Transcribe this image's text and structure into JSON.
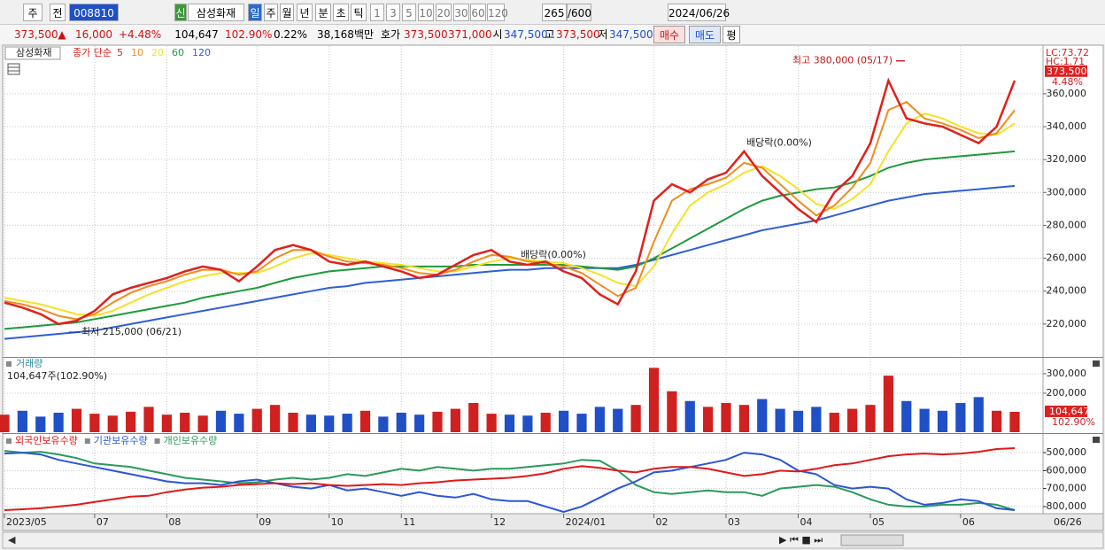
{
  "toolbar": {
    "row1": [
      "주",
      "전",
      "008810",
      "신",
      "삼성화재",
      "일",
      "주",
      "월",
      "년",
      "분",
      "초",
      "틱",
      "1",
      "3",
      "5",
      "10",
      "20",
      "30",
      "60",
      "120",
      "265",
      "/600",
      "2024/06/26"
    ],
    "row2": [
      "373,500",
      "▲",
      "16,000",
      "+4.48%",
      "104,647",
      "102.90%",
      "0.22%",
      "38,168백만",
      "호가",
      "373,500",
      "371,000",
      "시",
      "347,500",
      "고",
      "373,500",
      "저",
      "347,500",
      "매수",
      "매도",
      "평"
    ]
  },
  "chart_data": [
    {
      "type": "line",
      "stock_label": "삼성화재",
      "legend_prefix": "종가 단순",
      "ylim": [
        200000,
        389000
      ],
      "yticks": [
        {
          "value": 220000,
          "label": "220,000"
        },
        {
          "value": 240000,
          "label": "240,000"
        },
        {
          "value": 260000,
          "label": "260,000"
        },
        {
          "value": 280000,
          "label": "280,000"
        },
        {
          "value": 300000,
          "label": "300,000"
        },
        {
          "value": 320000,
          "label": "320,000"
        },
        {
          "value": 340000,
          "label": "340,000"
        },
        {
          "value": 360000,
          "label": "360,000"
        }
      ],
      "grid": true,
      "side_labels": [
        "LC:73.72",
        "HC:1.71"
      ],
      "last_price": {
        "value": 373500,
        "label": "373,500"
      },
      "last_change": "4.48%",
      "annotations": [
        {
          "text": "최고 380,000 (05/17)",
          "value": 380000
        },
        {
          "text": "최저 215,000 (06/21)",
          "value": 215000
        },
        {
          "text": "배당락(0.00%)",
          "value": 262000
        },
        {
          "text": "배당락(0.00%)",
          "value": 330000
        }
      ],
      "series": [
        {
          "name": "5",
          "color": "#e0201b",
          "values": [
            233000,
            230000,
            226000,
            220000,
            222000,
            228000,
            238000,
            242000,
            245000,
            248000,
            252000,
            255000,
            253000,
            246000,
            255000,
            265000,
            268000,
            265000,
            258000,
            256000,
            258000,
            255000,
            252000,
            248000,
            250000,
            256000,
            262000,
            265000,
            258000,
            256000,
            258000,
            252000,
            248000,
            238000,
            232000,
            252000,
            295000,
            305000,
            300000,
            308000,
            312000,
            325000,
            310000,
            300000,
            290000,
            282000,
            300000,
            310000,
            330000,
            368000,
            345000,
            342000,
            340000,
            335000,
            330000,
            340000,
            368000
          ]
        },
        {
          "name": "10",
          "color": "#f08c1e",
          "values": [
            234000,
            232000,
            229000,
            225000,
            223000,
            226000,
            233000,
            239000,
            243000,
            246000,
            250000,
            253000,
            253000,
            250000,
            252000,
            260000,
            265000,
            265000,
            261000,
            258000,
            257000,
            256000,
            254000,
            251000,
            250000,
            253000,
            258000,
            262000,
            261000,
            258000,
            257000,
            255000,
            251000,
            244000,
            237000,
            242000,
            270000,
            295000,
            302000,
            305000,
            309000,
            318000,
            315000,
            305000,
            295000,
            286000,
            292000,
            303000,
            318000,
            350000,
            355000,
            345000,
            342000,
            338000,
            333000,
            336000,
            350000
          ]
        },
        {
          "name": "20",
          "color": "#f2e22a",
          "values": [
            236000,
            234000,
            232000,
            229000,
            226000,
            225000,
            228000,
            233000,
            238000,
            242000,
            246000,
            249000,
            251000,
            251000,
            251000,
            255000,
            260000,
            263000,
            262000,
            260000,
            258000,
            257000,
            256000,
            254000,
            252000,
            252000,
            255000,
            258000,
            260000,
            259000,
            258000,
            257000,
            254000,
            250000,
            245000,
            243000,
            255000,
            275000,
            292000,
            300000,
            305000,
            312000,
            316000,
            310000,
            302000,
            293000,
            290000,
            296000,
            305000,
            325000,
            342000,
            348000,
            345000,
            340000,
            336000,
            335000,
            342000
          ]
        },
        {
          "name": "60",
          "color": "#1e9a3c",
          "values": [
            217000,
            218000,
            219000,
            220000,
            221000,
            223000,
            225000,
            227000,
            229000,
            231000,
            233000,
            236000,
            238000,
            240000,
            242000,
            245000,
            248000,
            250000,
            252000,
            253000,
            254000,
            255000,
            255000,
            255000,
            255000,
            255000,
            256000,
            256000,
            256000,
            256000,
            256000,
            256000,
            255000,
            254000,
            253000,
            255000,
            260000,
            266000,
            272000,
            278000,
            284000,
            290000,
            295000,
            298000,
            300000,
            302000,
            303000,
            306000,
            310000,
            315000,
            318000,
            320000,
            321000,
            322000,
            323000,
            324000,
            325000
          ]
        },
        {
          "name": "120",
          "color": "#2e5ed8",
          "values": [
            211000,
            212000,
            213000,
            214000,
            215000,
            216000,
            218000,
            220000,
            222000,
            224000,
            226000,
            228000,
            230000,
            232000,
            234000,
            236000,
            238000,
            240000,
            242000,
            243000,
            245000,
            246000,
            247000,
            248000,
            249000,
            250000,
            251000,
            252000,
            253000,
            253000,
            254000,
            254000,
            254000,
            254000,
            254000,
            256000,
            259000,
            262000,
            265000,
            268000,
            271000,
            274000,
            277000,
            279000,
            281000,
            283000,
            286000,
            289000,
            292000,
            295000,
            297000,
            299000,
            300000,
            301000,
            302000,
            303000,
            304000
          ]
        }
      ]
    },
    {
      "type": "bar",
      "title": "거래량",
      "subtitle": "104,647주(102.90%)",
      "ylim": [
        0,
        377000
      ],
      "yticks": [
        {
          "value": 200000,
          "label": "200,000"
        },
        {
          "value": 300000,
          "label": "300,000"
        }
      ],
      "color": "#d02020",
      "color_down": "#2050c8",
      "values": [
        90000,
        110000,
        80000,
        100000,
        120000,
        95000,
        85000,
        105000,
        130000,
        90000,
        100000,
        85000,
        110000,
        95000,
        120000,
        140000,
        100000,
        90000,
        85000,
        95000,
        110000,
        80000,
        100000,
        90000,
        105000,
        120000,
        150000,
        95000,
        90000,
        85000,
        100000,
        110000,
        95000,
        130000,
        120000,
        140000,
        330000,
        210000,
        160000,
        130000,
        150000,
        140000,
        170000,
        120000,
        110000,
        130000,
        100000,
        120000,
        140000,
        290000,
        160000,
        120000,
        110000,
        150000,
        180000,
        110000,
        104647
      ],
      "last_label": "104,647",
      "last_ratio": "102.90%"
    },
    {
      "type": "line",
      "ylim": [
        -830000,
        -396000
      ],
      "yticks": [
        {
          "value": -800000,
          "label": "-800,000"
        },
        {
          "value": -700000,
          "label": "-700,000"
        },
        {
          "value": -600000,
          "label": "-600,000"
        },
        {
          "value": -500000,
          "label": "-500,000"
        }
      ],
      "categories": [
        "2023/05",
        null,
        null,
        null,
        null,
        "07",
        null,
        null,
        null,
        "08",
        null,
        null,
        null,
        null,
        "09",
        null,
        null,
        null,
        "10",
        null,
        null,
        null,
        "11",
        null,
        null,
        null,
        null,
        "12",
        null,
        null,
        null,
        "2024/01",
        null,
        null,
        null,
        null,
        "02",
        null,
        null,
        null,
        "03",
        null,
        null,
        null,
        "04",
        null,
        null,
        null,
        "05",
        null,
        null,
        null,
        null,
        "06",
        null,
        null,
        null
      ],
      "current_date": "06/26",
      "series": [
        {
          "name": "외국인보유수량",
          "color": "#e01818",
          "values": [
            -820000,
            -815000,
            -810000,
            -800000,
            -790000,
            -775000,
            -760000,
            -745000,
            -740000,
            -720000,
            -705000,
            -695000,
            -690000,
            -680000,
            -675000,
            -670000,
            -675000,
            -670000,
            -680000,
            -685000,
            -680000,
            -675000,
            -680000,
            -670000,
            -665000,
            -655000,
            -650000,
            -645000,
            -640000,
            -630000,
            -615000,
            -590000,
            -575000,
            -585000,
            -600000,
            -610000,
            -590000,
            -580000,
            -580000,
            -590000,
            -610000,
            -630000,
            -620000,
            -600000,
            -605000,
            -590000,
            -570000,
            -560000,
            -540000,
            -520000,
            -510000,
            -505000,
            -510000,
            -505000,
            -495000,
            -480000,
            -475000
          ]
        },
        {
          "name": "기관보유수량",
          "color": "#2a55d8",
          "values": [
            -505000,
            -500000,
            -510000,
            -540000,
            -560000,
            -580000,
            -600000,
            -620000,
            -640000,
            -660000,
            -670000,
            -670000,
            -680000,
            -660000,
            -650000,
            -670000,
            -690000,
            -700000,
            -680000,
            -710000,
            -700000,
            -720000,
            -740000,
            -720000,
            -740000,
            -750000,
            -730000,
            -760000,
            -770000,
            -770000,
            -800000,
            -830000,
            -800000,
            -750000,
            -700000,
            -660000,
            -610000,
            -600000,
            -580000,
            -560000,
            -540000,
            -500000,
            -510000,
            -540000,
            -600000,
            -620000,
            -680000,
            -700000,
            -690000,
            -700000,
            -760000,
            -790000,
            -780000,
            -760000,
            -770000,
            -810000,
            -820000
          ]
        },
        {
          "name": "개인보유수량",
          "color": "#2a9a5a",
          "values": [
            -490000,
            -500000,
            -495000,
            -510000,
            -530000,
            -560000,
            -570000,
            -580000,
            -600000,
            -620000,
            -640000,
            -650000,
            -660000,
            -670000,
            -665000,
            -650000,
            -640000,
            -650000,
            -640000,
            -620000,
            -630000,
            -610000,
            -590000,
            -600000,
            -580000,
            -590000,
            -600000,
            -590000,
            -590000,
            -580000,
            -570000,
            -560000,
            -540000,
            -545000,
            -600000,
            -680000,
            -720000,
            -730000,
            -720000,
            -710000,
            -720000,
            -720000,
            -740000,
            -700000,
            -690000,
            -680000,
            -690000,
            -720000,
            -760000,
            -790000,
            -800000,
            -800000,
            -790000,
            -790000,
            -780000,
            -790000,
            -820000
          ]
        }
      ]
    }
  ]
}
